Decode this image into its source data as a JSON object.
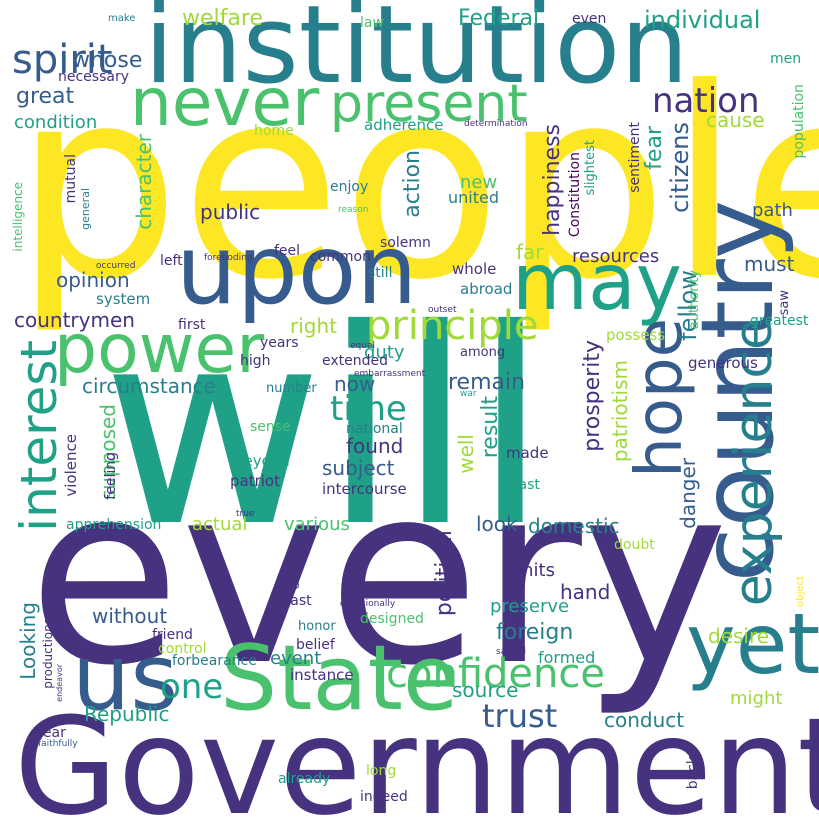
{
  "palette": {
    "yellow": "#fde725",
    "lime": "#a0da39",
    "green": "#4ac16d",
    "sea": "#1fa187",
    "teal": "#277f8e",
    "blue": "#365c8d",
    "indigo": "#46327e",
    "violet": "#440154"
  },
  "words": [
    {
      "text": "people",
      "color": "yellow",
      "icon": ""
    },
    {
      "text": "will",
      "color": "sea"
    },
    {
      "text": "every",
      "color": "indigo"
    },
    {
      "text": "Government",
      "color": "indigo"
    },
    {
      "text": "institution",
      "color": "teal"
    },
    {
      "text": "country",
      "color": "blue"
    },
    {
      "text": "upon",
      "color": "blue"
    },
    {
      "text": "State",
      "color": "green"
    },
    {
      "text": "power",
      "color": "green"
    },
    {
      "text": "never",
      "color": "green"
    },
    {
      "text": "present",
      "color": "green"
    },
    {
      "text": "may",
      "color": "sea"
    },
    {
      "text": "us",
      "color": "blue"
    },
    {
      "text": "yet",
      "color": "teal"
    },
    {
      "text": "hope",
      "color": "blue"
    },
    {
      "text": "experience",
      "color": "teal"
    },
    {
      "text": "interest",
      "color": "sea"
    },
    {
      "text": "confidence",
      "color": "green"
    },
    {
      "text": "principle",
      "color": "lime"
    },
    {
      "text": "spirit",
      "color": "blue"
    },
    {
      "text": "nation",
      "color": "indigo"
    },
    {
      "text": "trust",
      "color": "blue"
    },
    {
      "text": "one",
      "color": "sea"
    },
    {
      "text": "time",
      "color": "sea"
    },
    {
      "text": "citizens",
      "color": "blue"
    },
    {
      "text": "fellow",
      "color": "teal"
    },
    {
      "text": "welfare",
      "color": "lime"
    },
    {
      "text": "individual",
      "color": "sea"
    },
    {
      "text": "Federal",
      "color": "sea"
    },
    {
      "text": "great",
      "color": "blue"
    },
    {
      "text": "whose",
      "color": "blue"
    },
    {
      "text": "condition",
      "color": "sea"
    },
    {
      "text": "cause",
      "color": "lime"
    },
    {
      "text": "fear",
      "color": "sea"
    },
    {
      "text": "happiness",
      "color": "indigo"
    },
    {
      "text": "action",
      "color": "teal"
    },
    {
      "text": "character",
      "color": "green"
    },
    {
      "text": "public",
      "color": "indigo"
    },
    {
      "text": "new",
      "color": "green"
    },
    {
      "text": "united",
      "color": "teal"
    },
    {
      "text": "path",
      "color": "blue"
    },
    {
      "text": "far",
      "color": "lime"
    },
    {
      "text": "resources",
      "color": "indigo"
    },
    {
      "text": "must",
      "color": "blue"
    },
    {
      "text": "opinion",
      "color": "blue"
    },
    {
      "text": "countrymen",
      "color": "indigo"
    },
    {
      "text": "right",
      "color": "lime"
    },
    {
      "text": "duty",
      "color": "sea"
    },
    {
      "text": "circumstance",
      "color": "teal"
    },
    {
      "text": "now",
      "color": "blue"
    },
    {
      "text": "remain",
      "color": "blue"
    },
    {
      "text": "found",
      "color": "indigo"
    },
    {
      "text": "subject",
      "color": "blue"
    },
    {
      "text": "result",
      "color": "sea"
    },
    {
      "text": "well",
      "color": "lime"
    },
    {
      "text": "prosperity",
      "color": "indigo"
    },
    {
      "text": "patriotism",
      "color": "lime"
    },
    {
      "text": "danger",
      "color": "blue"
    },
    {
      "text": "supposed",
      "color": "green"
    },
    {
      "text": "actual",
      "color": "lime"
    },
    {
      "text": "various",
      "color": "green"
    },
    {
      "text": "look",
      "color": "blue"
    },
    {
      "text": "domestic",
      "color": "teal"
    },
    {
      "text": "political",
      "color": "indigo"
    },
    {
      "text": "limits",
      "color": "indigo"
    },
    {
      "text": "hand",
      "color": "indigo"
    },
    {
      "text": "foreign",
      "color": "teal"
    },
    {
      "text": "preserve",
      "color": "sea"
    },
    {
      "text": "without",
      "color": "blue"
    },
    {
      "text": "Looking",
      "color": "teal"
    },
    {
      "text": "event",
      "color": "teal"
    },
    {
      "text": "formed",
      "color": "sea"
    },
    {
      "text": "desire",
      "color": "lime"
    },
    {
      "text": "source",
      "color": "sea"
    },
    {
      "text": "Republic",
      "color": "sea"
    },
    {
      "text": "conduct",
      "color": "teal"
    },
    {
      "text": "might",
      "color": "lime"
    },
    {
      "text": "apprehension",
      "color": "sea"
    },
    {
      "text": "violence",
      "color": "indigo"
    },
    {
      "text": "feeling",
      "color": "indigo"
    },
    {
      "text": "beyond",
      "color": "sea"
    },
    {
      "text": "patriot",
      "color": "indigo"
    },
    {
      "text": "intercourse",
      "color": "indigo"
    },
    {
      "text": "least",
      "color": "sea"
    },
    {
      "text": "made",
      "color": "indigo"
    },
    {
      "text": "sense",
      "color": "green"
    },
    {
      "text": "national",
      "color": "teal"
    },
    {
      "text": "years",
      "color": "indigo"
    },
    {
      "text": "high",
      "color": "indigo"
    },
    {
      "text": "extended",
      "color": "indigo"
    },
    {
      "text": "among",
      "color": "indigo"
    },
    {
      "text": "number",
      "color": "teal"
    },
    {
      "text": "first",
      "color": "indigo"
    },
    {
      "text": "system",
      "color": "teal"
    },
    {
      "text": "left",
      "color": "indigo"
    },
    {
      "text": "common",
      "color": "indigo"
    },
    {
      "text": "still",
      "color": "teal"
    },
    {
      "text": "whole",
      "color": "indigo"
    },
    {
      "text": "abroad",
      "color": "teal"
    },
    {
      "text": "solemn",
      "color": "indigo"
    },
    {
      "text": "feel",
      "color": "indigo"
    },
    {
      "text": "enjoy",
      "color": "teal"
    },
    {
      "text": "reason",
      "color": "green"
    },
    {
      "text": "foreboding",
      "color": "indigo"
    },
    {
      "text": "occurred",
      "color": "indigo"
    },
    {
      "text": "general",
      "color": "teal"
    },
    {
      "text": "mutual",
      "color": "indigo"
    },
    {
      "text": "intelligence",
      "color": "green"
    },
    {
      "text": "home",
      "color": "lime"
    },
    {
      "text": "adherence",
      "color": "sea"
    },
    {
      "text": "determination",
      "color": "indigo"
    },
    {
      "text": "Constitution",
      "color": "violet"
    },
    {
      "text": "slightest",
      "color": "sea"
    },
    {
      "text": "sentiment",
      "color": "indigo"
    },
    {
      "text": "population",
      "color": "green"
    },
    {
      "text": "authority",
      "color": "green"
    },
    {
      "text": "saw",
      "color": "indigo"
    },
    {
      "text": "greatest",
      "color": "sea"
    },
    {
      "text": "possess",
      "color": "lime"
    },
    {
      "text": "generous",
      "color": "indigo"
    },
    {
      "text": "outset",
      "color": "indigo"
    },
    {
      "text": "equal",
      "color": "indigo"
    },
    {
      "text": "embarrassment",
      "color": "indigo"
    },
    {
      "text": "war",
      "color": "sea"
    },
    {
      "text": "law",
      "color": "green"
    },
    {
      "text": "make",
      "color": "teal"
    },
    {
      "text": "even",
      "color": "indigo"
    },
    {
      "text": "necessary",
      "color": "indigo"
    },
    {
      "text": "men",
      "color": "sea"
    },
    {
      "text": "true",
      "color": "indigo"
    },
    {
      "text": "existing",
      "color": "indigo"
    },
    {
      "text": "doubt",
      "color": "lime"
    },
    {
      "text": "object",
      "color": "yellow"
    },
    {
      "text": "vast",
      "color": "indigo"
    },
    {
      "text": "occasionally",
      "color": "indigo"
    },
    {
      "text": "designed",
      "color": "green"
    },
    {
      "text": "friend",
      "color": "indigo"
    },
    {
      "text": "honor",
      "color": "teal"
    },
    {
      "text": "belief",
      "color": "indigo"
    },
    {
      "text": "control",
      "color": "lime"
    },
    {
      "text": "forbearance",
      "color": "teal"
    },
    {
      "text": "productions",
      "color": "indigo"
    },
    {
      "text": "sacred",
      "color": "indigo"
    },
    {
      "text": "endeavor",
      "color": "indigo"
    },
    {
      "text": "instance",
      "color": "indigo"
    },
    {
      "text": "bear",
      "color": "indigo"
    },
    {
      "text": "faithfully",
      "color": "blue"
    },
    {
      "text": "already",
      "color": "sea"
    },
    {
      "text": "long",
      "color": "lime"
    },
    {
      "text": "indeed",
      "color": "indigo"
    },
    {
      "text": "back",
      "color": "indigo"
    }
  ]
}
